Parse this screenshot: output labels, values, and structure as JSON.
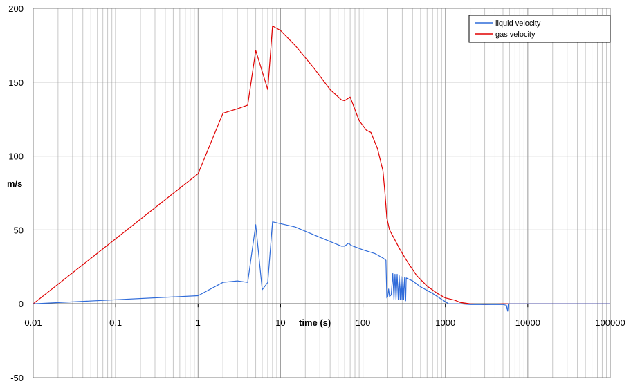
{
  "chart_data": {
    "type": "line",
    "xlabel": "time (s)",
    "ylabel": "m/s",
    "x_scale": "log",
    "xlim": [
      0.01,
      100000
    ],
    "ylim": [
      -50,
      200
    ],
    "x_ticks": [
      0.01,
      0.1,
      1,
      10,
      100,
      1000,
      10000,
      100000
    ],
    "x_tick_labels": [
      "0.01",
      "0.1",
      "1",
      "10",
      "100",
      "1000",
      "10000",
      "100000"
    ],
    "y_ticks": [
      -50,
      0,
      50,
      100,
      150,
      200
    ],
    "y_tick_labels": [
      "-50",
      "0",
      "50",
      "100",
      "150",
      "200"
    ],
    "grid": true,
    "legend_position": "top-right",
    "series": [
      {
        "name": "liquid velocity",
        "color": "#2f6bd9",
        "points": [
          [
            0.01,
            0
          ],
          [
            1,
            5.5
          ],
          [
            2,
            14.5
          ],
          [
            3,
            15.5
          ],
          [
            4,
            14.5
          ],
          [
            5,
            53.5
          ],
          [
            6,
            9.5
          ],
          [
            7,
            14.5
          ],
          [
            8,
            55.5
          ],
          [
            15,
            52
          ],
          [
            30,
            45
          ],
          [
            55,
            39
          ],
          [
            60,
            39
          ],
          [
            67,
            41
          ],
          [
            72,
            39.5
          ],
          [
            100,
            36.5
          ],
          [
            140,
            34
          ],
          [
            175,
            31
          ],
          [
            190,
            29.5
          ],
          [
            195,
            4
          ],
          [
            200,
            5
          ],
          [
            205,
            10
          ],
          [
            210,
            5
          ],
          [
            220,
            6
          ],
          [
            230,
            20.5
          ],
          [
            238,
            3
          ],
          [
            245,
            20
          ],
          [
            252,
            3
          ],
          [
            260,
            20
          ],
          [
            268,
            3
          ],
          [
            275,
            19
          ],
          [
            283,
            3
          ],
          [
            290,
            18.5
          ],
          [
            298,
            3
          ],
          [
            305,
            18
          ],
          [
            312,
            3
          ],
          [
            320,
            18
          ],
          [
            330,
            2
          ],
          [
            335,
            17.5
          ],
          [
            400,
            15.5
          ],
          [
            500,
            11.5
          ],
          [
            700,
            7
          ],
          [
            900,
            3
          ],
          [
            1100,
            0
          ],
          [
            1500,
            0
          ],
          [
            2000,
            -0.5
          ],
          [
            3000,
            -0.5
          ],
          [
            4000,
            -0.5
          ],
          [
            5000,
            -0.5
          ],
          [
            5500,
            -1
          ],
          [
            5700,
            -5
          ],
          [
            5800,
            0
          ],
          [
            10000,
            0
          ],
          [
            100000,
            0
          ]
        ]
      },
      {
        "name": "gas velocity",
        "color": "#e00000",
        "points": [
          [
            0.01,
            0
          ],
          [
            1,
            88
          ],
          [
            2,
            129
          ],
          [
            3,
            132
          ],
          [
            4,
            134.5
          ],
          [
            5,
            171.5
          ],
          [
            7,
            145
          ],
          [
            8,
            188
          ],
          [
            10,
            185
          ],
          [
            15,
            175
          ],
          [
            25,
            160
          ],
          [
            40,
            145
          ],
          [
            55,
            138
          ],
          [
            60,
            137.5
          ],
          [
            70,
            140
          ],
          [
            90,
            124
          ],
          [
            110,
            117.5
          ],
          [
            125,
            116
          ],
          [
            150,
            105
          ],
          [
            175,
            90
          ],
          [
            185,
            75
          ],
          [
            195,
            58
          ],
          [
            210,
            50
          ],
          [
            240,
            44
          ],
          [
            280,
            37
          ],
          [
            350,
            28
          ],
          [
            450,
            19
          ],
          [
            600,
            12
          ],
          [
            800,
            7
          ],
          [
            1000,
            4
          ],
          [
            1300,
            2.5
          ],
          [
            1500,
            1
          ],
          [
            2000,
            0
          ],
          [
            3000,
            -0.5
          ],
          [
            5000,
            0
          ],
          [
            10000,
            0
          ],
          [
            100000,
            0
          ]
        ]
      }
    ]
  }
}
